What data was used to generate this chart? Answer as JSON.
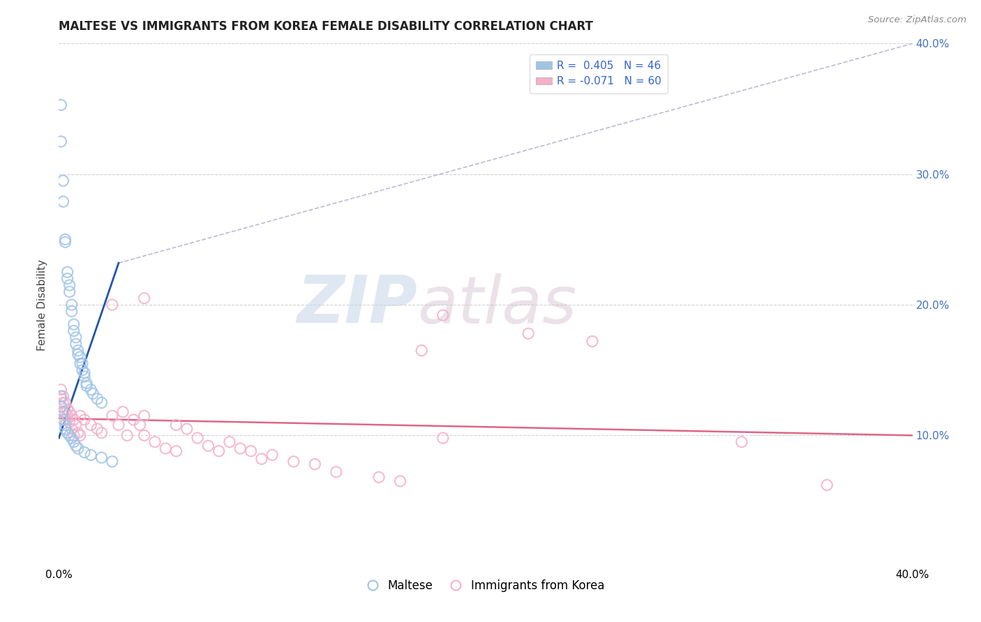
{
  "title": "MALTESE VS IMMIGRANTS FROM KOREA FEMALE DISABILITY CORRELATION CHART",
  "source": "Source: ZipAtlas.com",
  "ylabel": "Female Disability",
  "xmin": 0.0,
  "xmax": 0.4,
  "ymin": 0.0,
  "ymax": 0.4,
  "grid_color": "#cccccc",
  "background_color": "#ffffff",
  "blue_color": "#a0c4e8",
  "pink_color": "#f4b0c8",
  "blue_line_color": "#2255aa",
  "pink_line_color": "#dd6688",
  "dashed_line_color": "#aaaacc",
  "legend_blue_label": "R =  0.405   N = 46",
  "legend_pink_label": "R = -0.071   N = 60",
  "maltese_label": "Maltese",
  "korea_label": "Immigrants from Korea",
  "watermark_zip": "ZIP",
  "watermark_atlas": "atlas",
  "blue_R": 0.405,
  "blue_N": 46,
  "pink_R": -0.071,
  "pink_N": 60,
  "blue_scatter": [
    [
      0.001,
      0.353
    ],
    [
      0.001,
      0.325
    ],
    [
      0.002,
      0.295
    ],
    [
      0.002,
      0.279
    ],
    [
      0.003,
      0.25
    ],
    [
      0.003,
      0.248
    ],
    [
      0.004,
      0.225
    ],
    [
      0.004,
      0.22
    ],
    [
      0.005,
      0.215
    ],
    [
      0.005,
      0.21
    ],
    [
      0.006,
      0.2
    ],
    [
      0.006,
      0.195
    ],
    [
      0.007,
      0.185
    ],
    [
      0.007,
      0.18
    ],
    [
      0.008,
      0.175
    ],
    [
      0.008,
      0.17
    ],
    [
      0.009,
      0.165
    ],
    [
      0.009,
      0.162
    ],
    [
      0.01,
      0.16
    ],
    [
      0.01,
      0.155
    ],
    [
      0.011,
      0.155
    ],
    [
      0.011,
      0.15
    ],
    [
      0.012,
      0.148
    ],
    [
      0.012,
      0.145
    ],
    [
      0.013,
      0.14
    ],
    [
      0.013,
      0.138
    ],
    [
      0.015,
      0.135
    ],
    [
      0.016,
      0.132
    ],
    [
      0.018,
      0.128
    ],
    [
      0.02,
      0.125
    ],
    [
      0.001,
      0.13
    ],
    [
      0.001,
      0.122
    ],
    [
      0.002,
      0.118
    ],
    [
      0.002,
      0.112
    ],
    [
      0.003,
      0.108
    ],
    [
      0.003,
      0.105
    ],
    [
      0.004,
      0.102
    ],
    [
      0.005,
      0.1
    ],
    [
      0.006,
      0.098
    ],
    [
      0.007,
      0.095
    ],
    [
      0.008,
      0.092
    ],
    [
      0.009,
      0.09
    ],
    [
      0.012,
      0.087
    ],
    [
      0.015,
      0.085
    ],
    [
      0.02,
      0.083
    ],
    [
      0.025,
      0.08
    ]
  ],
  "pink_scatter": [
    [
      0.001,
      0.135
    ],
    [
      0.001,
      0.128
    ],
    [
      0.001,
      0.122
    ],
    [
      0.002,
      0.13
    ],
    [
      0.002,
      0.125
    ],
    [
      0.002,
      0.118
    ],
    [
      0.003,
      0.125
    ],
    [
      0.003,
      0.118
    ],
    [
      0.003,
      0.112
    ],
    [
      0.004,
      0.12
    ],
    [
      0.004,
      0.115
    ],
    [
      0.005,
      0.118
    ],
    [
      0.005,
      0.11
    ],
    [
      0.006,
      0.115
    ],
    [
      0.006,
      0.105
    ],
    [
      0.007,
      0.112
    ],
    [
      0.007,
      0.1
    ],
    [
      0.008,
      0.108
    ],
    [
      0.009,
      0.102
    ],
    [
      0.01,
      0.115
    ],
    [
      0.01,
      0.1
    ],
    [
      0.012,
      0.112
    ],
    [
      0.015,
      0.108
    ],
    [
      0.018,
      0.105
    ],
    [
      0.02,
      0.102
    ],
    [
      0.025,
      0.115
    ],
    [
      0.028,
      0.108
    ],
    [
      0.03,
      0.118
    ],
    [
      0.032,
      0.1
    ],
    [
      0.035,
      0.112
    ],
    [
      0.038,
      0.108
    ],
    [
      0.04,
      0.1
    ],
    [
      0.045,
      0.095
    ],
    [
      0.05,
      0.09
    ],
    [
      0.055,
      0.088
    ],
    [
      0.06,
      0.105
    ],
    [
      0.065,
      0.098
    ],
    [
      0.07,
      0.092
    ],
    [
      0.075,
      0.088
    ],
    [
      0.08,
      0.095
    ],
    [
      0.085,
      0.09
    ],
    [
      0.09,
      0.088
    ],
    [
      0.095,
      0.082
    ],
    [
      0.1,
      0.085
    ],
    [
      0.11,
      0.08
    ],
    [
      0.12,
      0.078
    ],
    [
      0.13,
      0.072
    ],
    [
      0.15,
      0.068
    ],
    [
      0.16,
      0.065
    ],
    [
      0.04,
      0.115
    ],
    [
      0.055,
      0.108
    ],
    [
      0.025,
      0.2
    ],
    [
      0.04,
      0.205
    ],
    [
      0.18,
      0.192
    ],
    [
      0.22,
      0.178
    ],
    [
      0.25,
      0.172
    ],
    [
      0.17,
      0.165
    ],
    [
      0.18,
      0.098
    ],
    [
      0.32,
      0.095
    ],
    [
      0.36,
      0.062
    ]
  ],
  "blue_trend_x": [
    0.0,
    0.028
  ],
  "blue_trend_y": [
    0.098,
    0.232
  ],
  "pink_trend_x": [
    0.0,
    0.4
  ],
  "pink_trend_y": [
    0.113,
    0.1
  ],
  "dashed_trend_x": [
    0.028,
    0.4
  ],
  "dashed_trend_y": [
    0.232,
    0.4
  ]
}
